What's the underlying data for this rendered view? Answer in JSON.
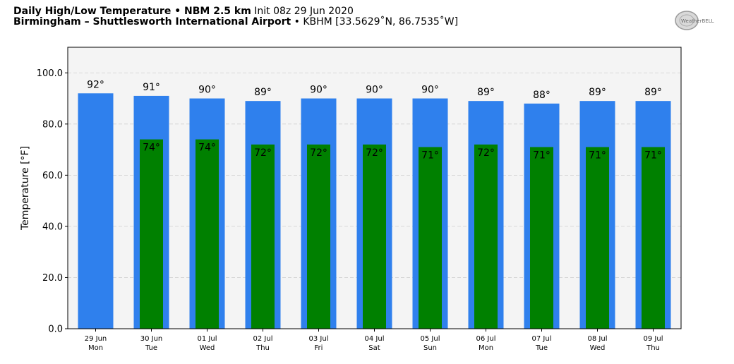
{
  "header": {
    "title_bold": "Daily High/Low Temperature • NBM 2.5 km",
    "title_init": "Init 08z 29 Jun 2020",
    "location_bold": "Birmingham – Shuttlesworth International Airport",
    "location_detail": "• KBHM [33.5629˚N, 86.7535˚W]",
    "logo_text": "WeatherBELL"
  },
  "colors": {
    "high_bar": "#2f80ed",
    "low_bar": "#008000",
    "plot_bg": "#f4f4f4",
    "grid": "#cfcfcf"
  },
  "chart_data": {
    "type": "bar",
    "ylabel": "Temperature [°F]",
    "ylim": [
      0,
      110
    ],
    "yticks": [
      "0.0",
      "20.0",
      "40.0",
      "60.0",
      "80.0",
      "100.0"
    ],
    "ytick_values": [
      0,
      20,
      40,
      60,
      80,
      100
    ],
    "grid": true,
    "categories": [
      [
        "29 Jun",
        "Mon"
      ],
      [
        "30 Jun",
        "Tue"
      ],
      [
        "01 Jul",
        "Wed"
      ],
      [
        "02 Jul",
        "Thu"
      ],
      [
        "03 Jul",
        "Fri"
      ],
      [
        "04 Jul",
        "Sat"
      ],
      [
        "05 Jul",
        "Sun"
      ],
      [
        "06 Jul",
        "Mon"
      ],
      [
        "07 Jul",
        "Tue"
      ],
      [
        "08 Jul",
        "Wed"
      ],
      [
        "09 Jul",
        "Thu"
      ]
    ],
    "series": [
      {
        "key": "high",
        "values": [
          92,
          91,
          90,
          89,
          90,
          90,
          90,
          89,
          88,
          89,
          89
        ],
        "labels": [
          "92°",
          "91°",
          "90°",
          "89°",
          "90°",
          "90°",
          "90°",
          "89°",
          "88°",
          "89°",
          "89°"
        ]
      },
      {
        "key": "low",
        "values": [
          null,
          74,
          74,
          72,
          72,
          72,
          71,
          72,
          71,
          71,
          71
        ],
        "labels": [
          "",
          "74°",
          "74°",
          "72°",
          "72°",
          "72°",
          "71°",
          "72°",
          "71°",
          "71°",
          "71°"
        ]
      }
    ]
  }
}
